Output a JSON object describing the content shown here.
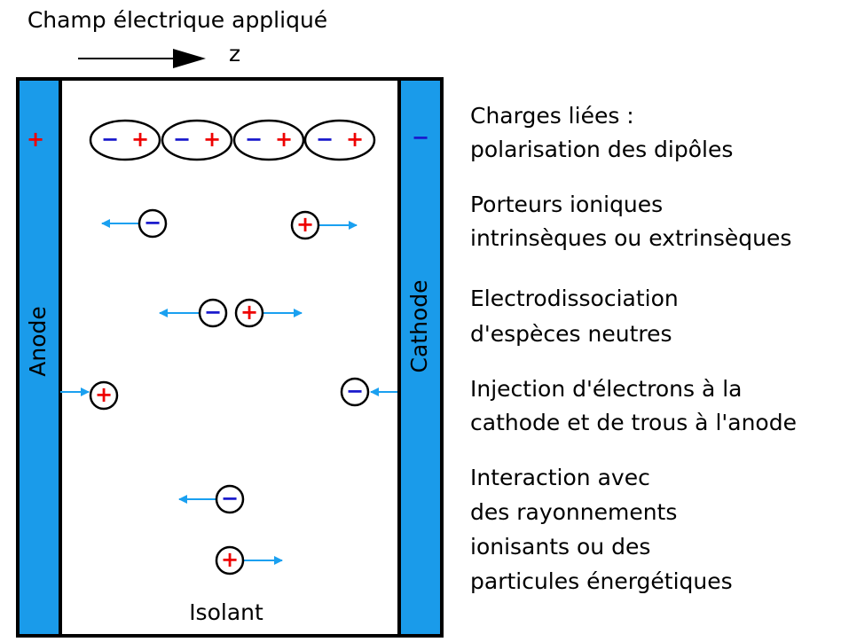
{
  "title": "Champ électrique appliqué",
  "axis": "z",
  "anode": {
    "label": "Anode",
    "sign": "+"
  },
  "cathode": {
    "label": "Cathode",
    "sign": "−"
  },
  "insulator": "Isolant",
  "signs": {
    "plus": "+",
    "minus": "−"
  },
  "descriptions": [
    [
      "Charges liées :",
      "polarisation des dipôles"
    ],
    [
      "Porteurs ioniques",
      "intrinsèques ou extrinsèques"
    ],
    [
      "Electrodissociation",
      "d'espèces neutres"
    ],
    [
      "Injection d'électrons à la",
      "cathode et de trous à l'anode"
    ],
    [
      "Interaction avec",
      "des rayonnements",
      "ionisants ou des",
      "particules énergétiques"
    ]
  ]
}
